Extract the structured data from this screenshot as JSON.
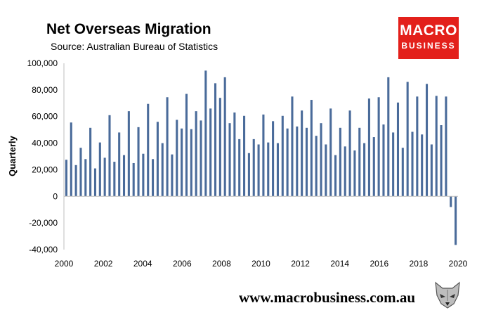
{
  "header": {
    "title": "Net Overseas Migration",
    "subtitle": "Source: Australian Bureau of Statistics"
  },
  "logo": {
    "line1": "MACRO",
    "line2": "BUSINESS",
    "color": "#e3201b"
  },
  "footer": {
    "site": "www.macrobusiness.com.au"
  },
  "chart_data": {
    "type": "bar",
    "title": "Net Overseas Migration",
    "ylabel": "Quarterly",
    "xlabel": "",
    "ylim": [
      -40000,
      100000
    ],
    "yticks": [
      -40000,
      -20000,
      0,
      20000,
      40000,
      60000,
      80000,
      100000
    ],
    "ytick_labels": [
      "-40,000",
      "-20,000",
      "0",
      "20,000",
      "40,000",
      "60,000",
      "80,000",
      "100,000"
    ],
    "xticks": [
      "2000",
      "2002",
      "2004",
      "2006",
      "2008",
      "2010",
      "2012",
      "2014",
      "2016",
      "2018",
      "2020"
    ],
    "xlim": [
      2000,
      2020
    ],
    "bar_color": "#4a6b9a",
    "grid": false,
    "legend": "none",
    "series": [
      {
        "frequency": "quarterly",
        "start": "2000 Q1",
        "values": [
          27500,
          55500,
          23500,
          36500,
          28000,
          51500,
          21000,
          40500,
          29000,
          61000,
          26000,
          48000,
          31000,
          64000,
          25000,
          52000,
          32000,
          69500,
          28000,
          56000,
          40000,
          74500,
          31500,
          57500,
          51000,
          77000,
          50500,
          64000,
          57000,
          94500,
          66000,
          85000,
          74000,
          89500,
          55000,
          63000,
          43000,
          60500,
          32500,
          43000,
          39000,
          61500,
          40500,
          56500,
          40000,
          60500,
          51000,
          75000,
          52500,
          64500,
          51500,
          72500,
          45500,
          55000,
          39000,
          66000,
          31000,
          51500,
          37500,
          64500,
          34500,
          51500,
          40000,
          73500,
          44500,
          74500,
          54000,
          89500,
          48000,
          70500,
          36500,
          86000,
          48500,
          75000,
          46500,
          84500,
          39000,
          75500,
          53500,
          75000,
          -8000,
          -36500
        ]
      }
    ]
  }
}
